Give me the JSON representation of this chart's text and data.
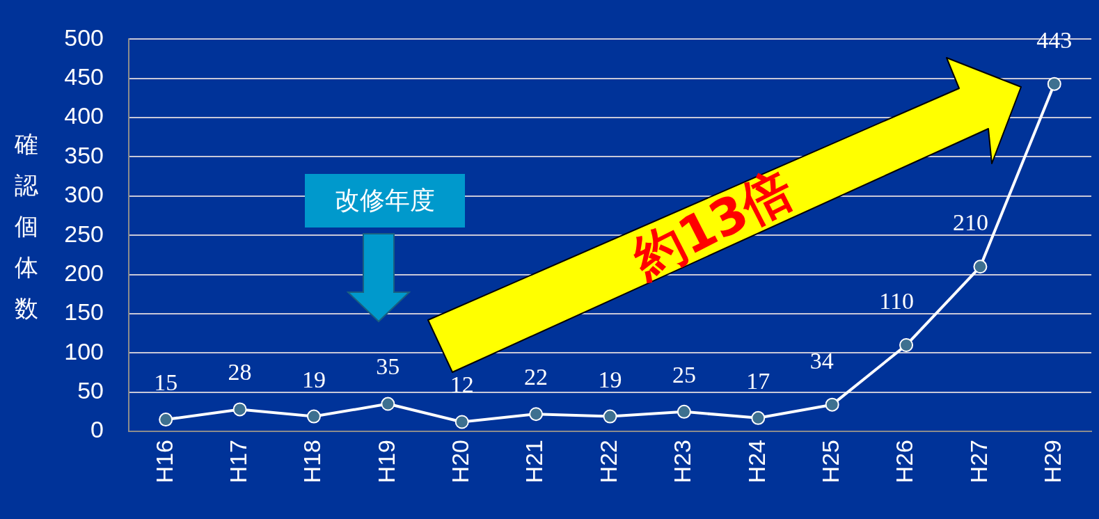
{
  "chart_data": {
    "type": "line",
    "ylabel": "確認個体数",
    "categories": [
      "H16",
      "H17",
      "H18",
      "H19",
      "H20",
      "H21",
      "H22",
      "H23",
      "H24",
      "H25",
      "H26",
      "H27",
      "H29"
    ],
    "series": [
      {
        "color": "#ffffff",
        "values": [
          15,
          28,
          19,
          35,
          12,
          22,
          19,
          25,
          17,
          34,
          110,
          210,
          443
        ]
      }
    ],
    "ylim": [
      0,
      500
    ],
    "yticks": [
      0,
      50,
      100,
      150,
      200,
      250,
      300,
      350,
      400,
      450,
      500
    ],
    "grid": "y",
    "legend": false,
    "marker": "circle",
    "line_style": "solid",
    "data_labels": true,
    "annotations": [
      "改修年度",
      "約13倍"
    ]
  }
}
